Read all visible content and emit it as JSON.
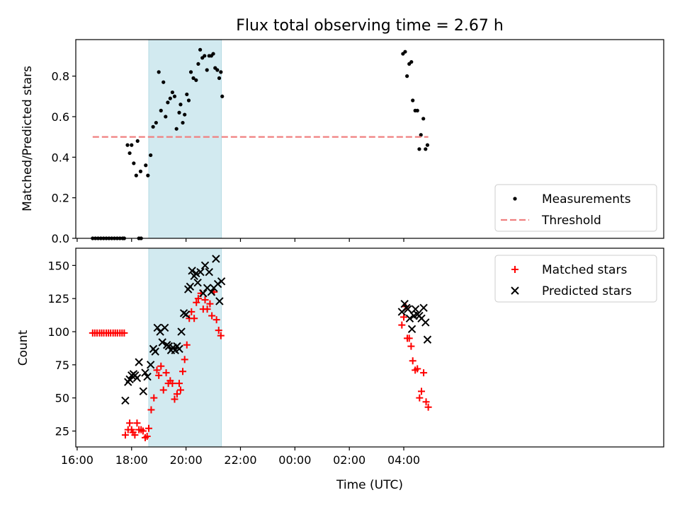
{
  "chart_data": [
    {
      "type": "scatter",
      "title": "Flux total observing time = 2.67 h",
      "xlabel": "",
      "ylabel": "Matched/Predicted stars",
      "xlim": [
        15.95,
        37.55
      ],
      "ylim": [
        0,
        0.98
      ],
      "x_ticks": [
        {
          "value": 16,
          "label": ""
        },
        {
          "value": 18,
          "label": ""
        },
        {
          "value": 20,
          "label": ""
        },
        {
          "value": 22,
          "label": ""
        },
        {
          "value": 24,
          "label": ""
        },
        {
          "value": 26,
          "label": ""
        },
        {
          "value": 28,
          "label": ""
        }
      ],
      "y_ticks": [
        {
          "value": 0.0,
          "label": "0.0"
        },
        {
          "value": 0.2,
          "label": "0.2"
        },
        {
          "value": 0.4,
          "label": "0.4"
        },
        {
          "value": 0.6,
          "label": "0.6"
        },
        {
          "value": 0.8,
          "label": "0.8"
        }
      ],
      "grid": false,
      "highlight_span": {
        "x_start": 18.63,
        "x_end": 21.3,
        "color": "#d2eaf0"
      },
      "legend_position": "lower right",
      "series": [
        {
          "name": "Measurements",
          "marker": "dot",
          "color": "#000000",
          "points": [
            [
              16.57,
              0
            ],
            [
              16.67,
              0
            ],
            [
              16.77,
              0
            ],
            [
              16.87,
              0
            ],
            [
              16.97,
              0
            ],
            [
              17.07,
              0
            ],
            [
              17.17,
              0
            ],
            [
              17.27,
              0
            ],
            [
              17.37,
              0
            ],
            [
              17.47,
              0
            ],
            [
              17.57,
              0
            ],
            [
              17.67,
              0
            ],
            [
              17.73,
              0
            ],
            [
              18.27,
              0
            ],
            [
              18.35,
              0
            ],
            [
              17.85,
              0.46
            ],
            [
              17.93,
              0.42
            ],
            [
              18.0,
              0.46
            ],
            [
              18.08,
              0.37
            ],
            [
              18.17,
              0.31
            ],
            [
              18.22,
              0.48
            ],
            [
              18.33,
              0.33
            ],
            [
              18.52,
              0.36
            ],
            [
              18.6,
              0.31
            ],
            [
              18.7,
              0.41
            ],
            [
              18.79,
              0.55
            ],
            [
              18.9,
              0.57
            ],
            [
              19.0,
              0.82
            ],
            [
              19.08,
              0.63
            ],
            [
              19.17,
              0.77
            ],
            [
              19.25,
              0.6
            ],
            [
              19.33,
              0.67
            ],
            [
              19.42,
              0.69
            ],
            [
              19.5,
              0.72
            ],
            [
              19.58,
              0.7
            ],
            [
              19.65,
              0.54
            ],
            [
              19.75,
              0.62
            ],
            [
              19.8,
              0.66
            ],
            [
              19.88,
              0.57
            ],
            [
              19.95,
              0.61
            ],
            [
              20.03,
              0.71
            ],
            [
              20.1,
              0.68
            ],
            [
              20.18,
              0.82
            ],
            [
              20.27,
              0.79
            ],
            [
              20.37,
              0.78
            ],
            [
              20.45,
              0.86
            ],
            [
              20.52,
              0.93
            ],
            [
              20.6,
              0.89
            ],
            [
              20.68,
              0.9
            ],
            [
              20.77,
              0.83
            ],
            [
              20.85,
              0.9
            ],
            [
              20.93,
              0.9
            ],
            [
              21.0,
              0.91
            ],
            [
              21.07,
              0.84
            ],
            [
              21.15,
              0.83
            ],
            [
              21.22,
              0.79
            ],
            [
              21.28,
              0.82
            ],
            [
              21.33,
              0.7
            ],
            [
              27.97,
              0.91
            ],
            [
              28.05,
              0.92
            ],
            [
              28.12,
              0.8
            ],
            [
              28.2,
              0.86
            ],
            [
              28.28,
              0.87
            ],
            [
              28.33,
              0.68
            ],
            [
              28.42,
              0.63
            ],
            [
              28.5,
              0.63
            ],
            [
              28.57,
              0.44
            ],
            [
              28.63,
              0.51
            ],
            [
              28.72,
              0.59
            ],
            [
              28.8,
              0.44
            ],
            [
              28.87,
              0.46
            ]
          ]
        },
        {
          "name": "Threshold",
          "marker": "dashed-line",
          "color": "#f08080",
          "points": [
            [
              16.57,
              0.5
            ],
            [
              28.9,
              0.5
            ]
          ]
        }
      ]
    },
    {
      "type": "scatter",
      "title": "",
      "xlabel": "Time (UTC)",
      "ylabel": "Count",
      "xlim": [
        15.95,
        37.55
      ],
      "ylim": [
        13,
        163
      ],
      "x_ticks": [
        {
          "value": 16,
          "label": "16:00"
        },
        {
          "value": 18,
          "label": "18:00"
        },
        {
          "value": 20,
          "label": "20:00"
        },
        {
          "value": 22,
          "label": "22:00"
        },
        {
          "value": 24,
          "label": "00:00"
        },
        {
          "value": 26,
          "label": "02:00"
        },
        {
          "value": 28,
          "label": "04:00"
        }
      ],
      "y_ticks": [
        {
          "value": 25,
          "label": "25"
        },
        {
          "value": 50,
          "label": "50"
        },
        {
          "value": 75,
          "label": "75"
        },
        {
          "value": 100,
          "label": "100"
        },
        {
          "value": 125,
          "label": "125"
        },
        {
          "value": 150,
          "label": "150"
        }
      ],
      "grid": false,
      "highlight_span": {
        "x_start": 18.63,
        "x_end": 21.3,
        "color": "#d2eaf0"
      },
      "legend_position": "upper right",
      "series": [
        {
          "name": "Matched stars",
          "marker": "plus",
          "color": "#ff0000",
          "points": [
            [
              16.57,
              99
            ],
            [
              16.65,
              99
            ],
            [
              16.73,
              99
            ],
            [
              16.82,
              99
            ],
            [
              16.9,
              99
            ],
            [
              16.98,
              99
            ],
            [
              17.07,
              99
            ],
            [
              17.15,
              99
            ],
            [
              17.23,
              99
            ],
            [
              17.32,
              99
            ],
            [
              17.4,
              99
            ],
            [
              17.48,
              99
            ],
            [
              17.57,
              99
            ],
            [
              17.65,
              99
            ],
            [
              17.73,
              99
            ],
            [
              17.77,
              22
            ],
            [
              17.87,
              26
            ],
            [
              17.93,
              31
            ],
            [
              18.0,
              26
            ],
            [
              18.05,
              24
            ],
            [
              18.12,
              22
            ],
            [
              18.2,
              31
            ],
            [
              18.27,
              26
            ],
            [
              18.35,
              26
            ],
            [
              18.42,
              25
            ],
            [
              18.5,
              20
            ],
            [
              18.57,
              21
            ],
            [
              18.63,
              27
            ],
            [
              18.72,
              41
            ],
            [
              18.82,
              50
            ],
            [
              18.93,
              71
            ],
            [
              19.0,
              67
            ],
            [
              19.08,
              74
            ],
            [
              19.17,
              56
            ],
            [
              19.27,
              69
            ],
            [
              19.35,
              61
            ],
            [
              19.42,
              63
            ],
            [
              19.5,
              61
            ],
            [
              19.58,
              49
            ],
            [
              19.67,
              53
            ],
            [
              19.75,
              61
            ],
            [
              19.8,
              56
            ],
            [
              19.88,
              70
            ],
            [
              19.95,
              79
            ],
            [
              20.03,
              90
            ],
            [
              20.12,
              110
            ],
            [
              20.2,
              115
            ],
            [
              20.3,
              110
            ],
            [
              20.38,
              122
            ],
            [
              20.45,
              125
            ],
            [
              20.55,
              129
            ],
            [
              20.63,
              117
            ],
            [
              20.7,
              124
            ],
            [
              20.78,
              117
            ],
            [
              20.88,
              121
            ],
            [
              20.95,
              112
            ],
            [
              21.03,
              130
            ],
            [
              21.12,
              109
            ],
            [
              21.2,
              101
            ],
            [
              21.28,
              97
            ],
            [
              27.93,
              105
            ],
            [
              28.0,
              111
            ],
            [
              28.07,
              119
            ],
            [
              28.13,
              95
            ],
            [
              28.2,
              95
            ],
            [
              28.27,
              89
            ],
            [
              28.33,
              78
            ],
            [
              28.42,
              71
            ],
            [
              28.5,
              72
            ],
            [
              28.58,
              50
            ],
            [
              28.65,
              55
            ],
            [
              28.73,
              69
            ],
            [
              28.82,
              47
            ],
            [
              28.9,
              43
            ]
          ]
        },
        {
          "name": "Predicted stars",
          "marker": "x",
          "color": "#000000",
          "points": [
            [
              17.77,
              48
            ],
            [
              17.87,
              62
            ],
            [
              17.93,
              64
            ],
            [
              18.0,
              67
            ],
            [
              18.07,
              68
            ],
            [
              18.13,
              67
            ],
            [
              18.2,
              65
            ],
            [
              18.27,
              77
            ],
            [
              18.43,
              55
            ],
            [
              18.5,
              69
            ],
            [
              18.58,
              66
            ],
            [
              18.7,
              75
            ],
            [
              18.8,
              87
            ],
            [
              18.87,
              85
            ],
            [
              18.95,
              103
            ],
            [
              19.05,
              100
            ],
            [
              19.13,
              92
            ],
            [
              19.22,
              103
            ],
            [
              19.3,
              90
            ],
            [
              19.37,
              89
            ],
            [
              19.45,
              86
            ],
            [
              19.52,
              88
            ],
            [
              19.6,
              86
            ],
            [
              19.67,
              89
            ],
            [
              19.75,
              87
            ],
            [
              19.83,
              100
            ],
            [
              19.92,
              114
            ],
            [
              20.0,
              113
            ],
            [
              20.08,
              132
            ],
            [
              20.15,
              134
            ],
            [
              20.22,
              146
            ],
            [
              20.3,
              142
            ],
            [
              20.37,
              144
            ],
            [
              20.43,
              137
            ],
            [
              20.53,
              145
            ],
            [
              20.63,
              129
            ],
            [
              20.7,
              150
            ],
            [
              20.78,
              133
            ],
            [
              20.85,
              145
            ],
            [
              20.93,
              130
            ],
            [
              21.02,
              133
            ],
            [
              21.1,
              155
            ],
            [
              21.17,
              136
            ],
            [
              21.23,
              123
            ],
            [
              21.3,
              138
            ],
            [
              27.93,
              115
            ],
            [
              28.03,
              121
            ],
            [
              28.1,
              118
            ],
            [
              28.15,
              117
            ],
            [
              28.22,
              110
            ],
            [
              28.3,
              102
            ],
            [
              28.37,
              112
            ],
            [
              28.43,
              117
            ],
            [
              28.5,
              113
            ],
            [
              28.57,
              112
            ],
            [
              28.65,
              110
            ],
            [
              28.73,
              118
            ],
            [
              28.8,
              107
            ],
            [
              28.87,
              94
            ]
          ]
        }
      ]
    }
  ]
}
